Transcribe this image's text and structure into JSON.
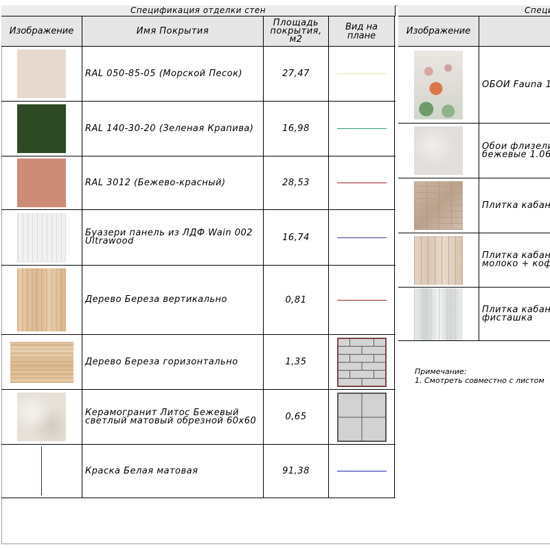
{
  "left_table": {
    "title": "Спецификация отделки стен",
    "headers": {
      "image": "Изображение",
      "name": "Имя Покрытия",
      "area": "Площадь покрытия, м2",
      "plan_view": "Вид на плане"
    },
    "rows": [
      {
        "name": "RAL 050-85-05 (Морской Песок)",
        "area": "27,47",
        "swatch_color": "#e8d9cf",
        "plan_line_color": "#e0e8a0"
      },
      {
        "name": "RAL 140-30-20 (Зеленая Крапива)",
        "area": "16,98",
        "swatch_color": "#2e4a25",
        "plan_line_color": "#2a9a70"
      },
      {
        "name": "RAL 3012 (Бежево-красный)",
        "area": "28,53",
        "swatch_color": "#cd8c78",
        "plan_line_color": "#a02030"
      },
      {
        "name": "Буазери панель из ЛДФ Wain 002 Ultrawood",
        "area": "16,74",
        "swatch_color": "#eeeeee",
        "plan_line_color": "#4040a0"
      },
      {
        "name": "Дерево Береза вертикально",
        "area": "0,81",
        "swatch_color": "#e0c29c",
        "plan_line_color": "#902030"
      },
      {
        "name": "Дерево Береза горизонтально",
        "area": "1,35",
        "swatch_color": "#e0c29c",
        "plan_hatch": "brick"
      },
      {
        "name": "Керамогранит Литос Бежевый светлый матовый обрезной 60х60",
        "area": "0,65",
        "swatch_color": "#e6e0d7",
        "plan_hatch": "tile"
      },
      {
        "name": "Краска Белая матовая",
        "area": "91,38",
        "swatch_color": "#ffffff",
        "plan_line_color": "#2020b0"
      }
    ]
  },
  "right_table": {
    "title": "Специ",
    "headers": {
      "image": "Изображение",
      "name": "Им"
    },
    "rows": [
      {
        "name_line1": "ОБОИ Fauna 1",
        "name_line2": ""
      },
      {
        "name_line1": "Обои флизели",
        "name_line2": "бежевые 1.06"
      },
      {
        "name_line1": "Плитка кабан",
        "name_line2": ""
      },
      {
        "name_line1": "Плитка кабан",
        "name_line2": "молоко + коф"
      },
      {
        "name_line1": "Плитка кабан",
        "name_line2": "фисташка"
      }
    ]
  },
  "note": {
    "title": "Примечание:",
    "line1": "1. Смотреть совместно с листом"
  }
}
